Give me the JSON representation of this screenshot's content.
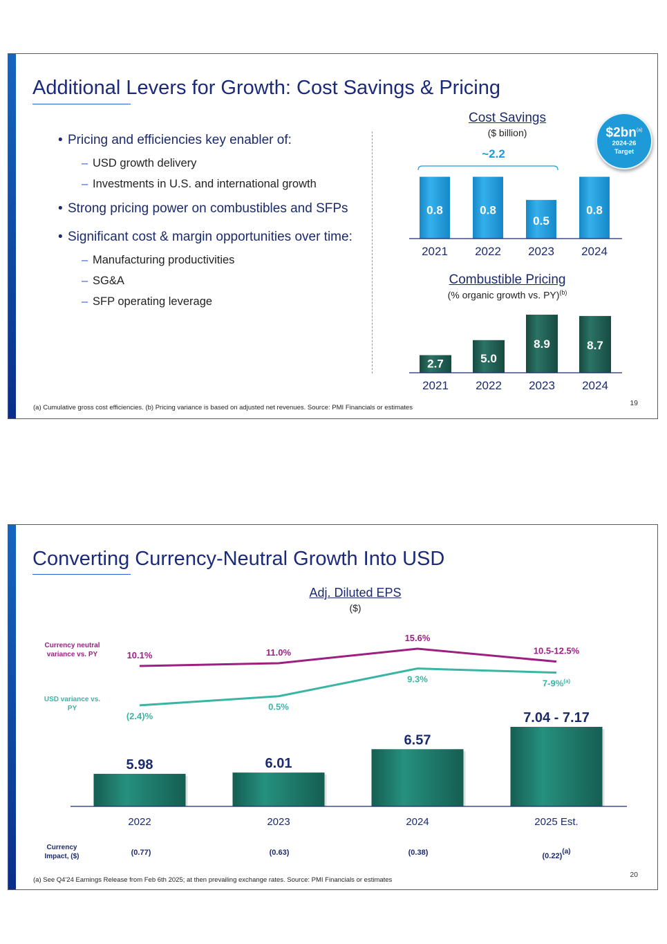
{
  "slide1": {
    "title": "Additional Levers for Growth: Cost Savings & Pricing",
    "bullets": [
      {
        "text": "Pricing and efficiencies key enabler of:",
        "subs": [
          "USD growth delivery",
          "Investments in U.S. and international growth"
        ]
      },
      {
        "text": "Strong pricing power on combustibles and SFPs",
        "subs": []
      },
      {
        "text": "Significant cost & margin opportunities over time:",
        "subs": [
          "Manufacturing productivities",
          "SG&A",
          "SFP operating leverage"
        ]
      }
    ],
    "badge": {
      "value": "$2bn",
      "sup": "(a)",
      "line1": "2024-26",
      "line2": "Target"
    },
    "cost_savings": {
      "title": "Cost Savings",
      "subtitle": "($ billion)",
      "bracket_label": "~2.2"
    },
    "pricing": {
      "title": "Combustible Pricing",
      "subtitle": "(% organic growth vs. PY)",
      "subtitle_sup": "(b)"
    },
    "footnote": "(a) Cumulative gross cost efficiencies. (b) Pricing variance is based on adjusted net revenues. Source: PMI Financials or estimates",
    "page_number": "19"
  },
  "slide2": {
    "title": "Converting Currency-Neutral Growth Into USD",
    "chart_title": "Adj. Diluted EPS",
    "chart_subtitle": "($)",
    "legend_cn": "Currency neutral variance vs. PY",
    "legend_usd": "USD variance vs. PY",
    "impact_label": "Currency Impact, ($)",
    "impacts": [
      "(0.77)",
      "(0.63)",
      "(0.38)",
      "(0.22)"
    ],
    "impact_last_sup": "(a)",
    "footnote": "(a) See Q4'24 Earnings Release from Feb 6th 2025; at then prevailing exchange rates. Source: PMI Financials or estimates",
    "page_number": "20"
  },
  "colors": {
    "navy": "#1b2a7a",
    "cost_blue": "#1e9ad8",
    "pricing_green": "#1d5b50",
    "eps_teal": "#1f7f6f",
    "magenta": "#9c1f82",
    "teal_line": "#3ab5a5"
  },
  "chart_data": [
    {
      "type": "bar",
      "title": "Cost Savings",
      "subtitle": "($ billion)",
      "categories": [
        "2021",
        "2022",
        "2023",
        "2024"
      ],
      "values": [
        0.8,
        0.8,
        0.5,
        0.8
      ],
      "labels": [
        "0.8",
        "0.8",
        "0.5",
        "0.8"
      ],
      "annotation": "~2.2",
      "ylim": [
        0,
        0.85
      ]
    },
    {
      "type": "bar",
      "title": "Combustible Pricing",
      "subtitle": "(% organic growth vs. PY)",
      "categories": [
        "2021",
        "2022",
        "2023",
        "2024"
      ],
      "values": [
        2.7,
        5.0,
        8.9,
        8.7
      ],
      "labels": [
        "2.7",
        "5.0",
        "8.9",
        "8.7"
      ],
      "ylim": [
        0,
        8.9
      ]
    },
    {
      "type": "bar",
      "title": "Adj. Diluted EPS",
      "subtitle": "($)",
      "categories": [
        "2022",
        "2023",
        "2024",
        "2025 Est."
      ],
      "values": [
        5.98,
        6.01,
        6.57,
        7.105
      ],
      "labels": [
        "5.98",
        "6.01",
        "6.57",
        "7.04 - 7.17"
      ],
      "ylim": [
        5.2,
        7.105
      ],
      "series": [
        {
          "name": "Currency neutral variance vs. PY",
          "type": "line",
          "values": [
            10.1,
            11.0,
            15.6,
            11.5
          ],
          "labels": [
            "10.1%",
            "11.0%",
            "15.6%",
            "10.5-12.5%"
          ]
        },
        {
          "name": "USD variance vs. PY",
          "type": "line",
          "values": [
            -2.4,
            0.5,
            9.3,
            8.0
          ],
          "labels": [
            "(2.4)%",
            "0.5%",
            "9.3%",
            "7-9%"
          ],
          "last_label_sup": "(a)"
        }
      ]
    }
  ]
}
